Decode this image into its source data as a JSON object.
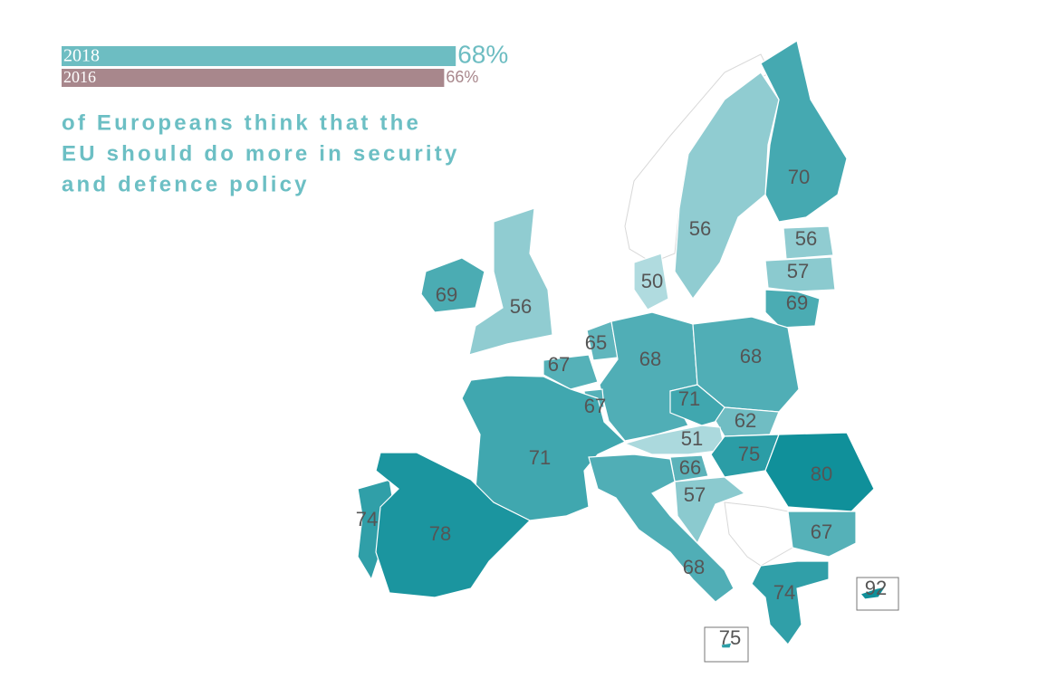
{
  "summary": {
    "series": [
      {
        "name": "2018",
        "value": 68,
        "value_label": "68%",
        "color": "#6dbdc2"
      },
      {
        "name": "2016",
        "value": 66,
        "value_label": "66%",
        "color": "#a8878c"
      }
    ]
  },
  "headline": {
    "lines": [
      "of Europeans think that the",
      "EU should do more in security",
      "and defence policy"
    ]
  },
  "map": {
    "values": [
      70,
      56,
      56,
      57,
      69,
      50,
      69,
      56,
      65,
      68,
      68,
      67,
      71,
      67,
      62,
      51,
      71,
      75,
      80,
      66,
      57,
      74,
      78,
      67,
      68,
      74,
      92,
      75
    ]
  }
}
